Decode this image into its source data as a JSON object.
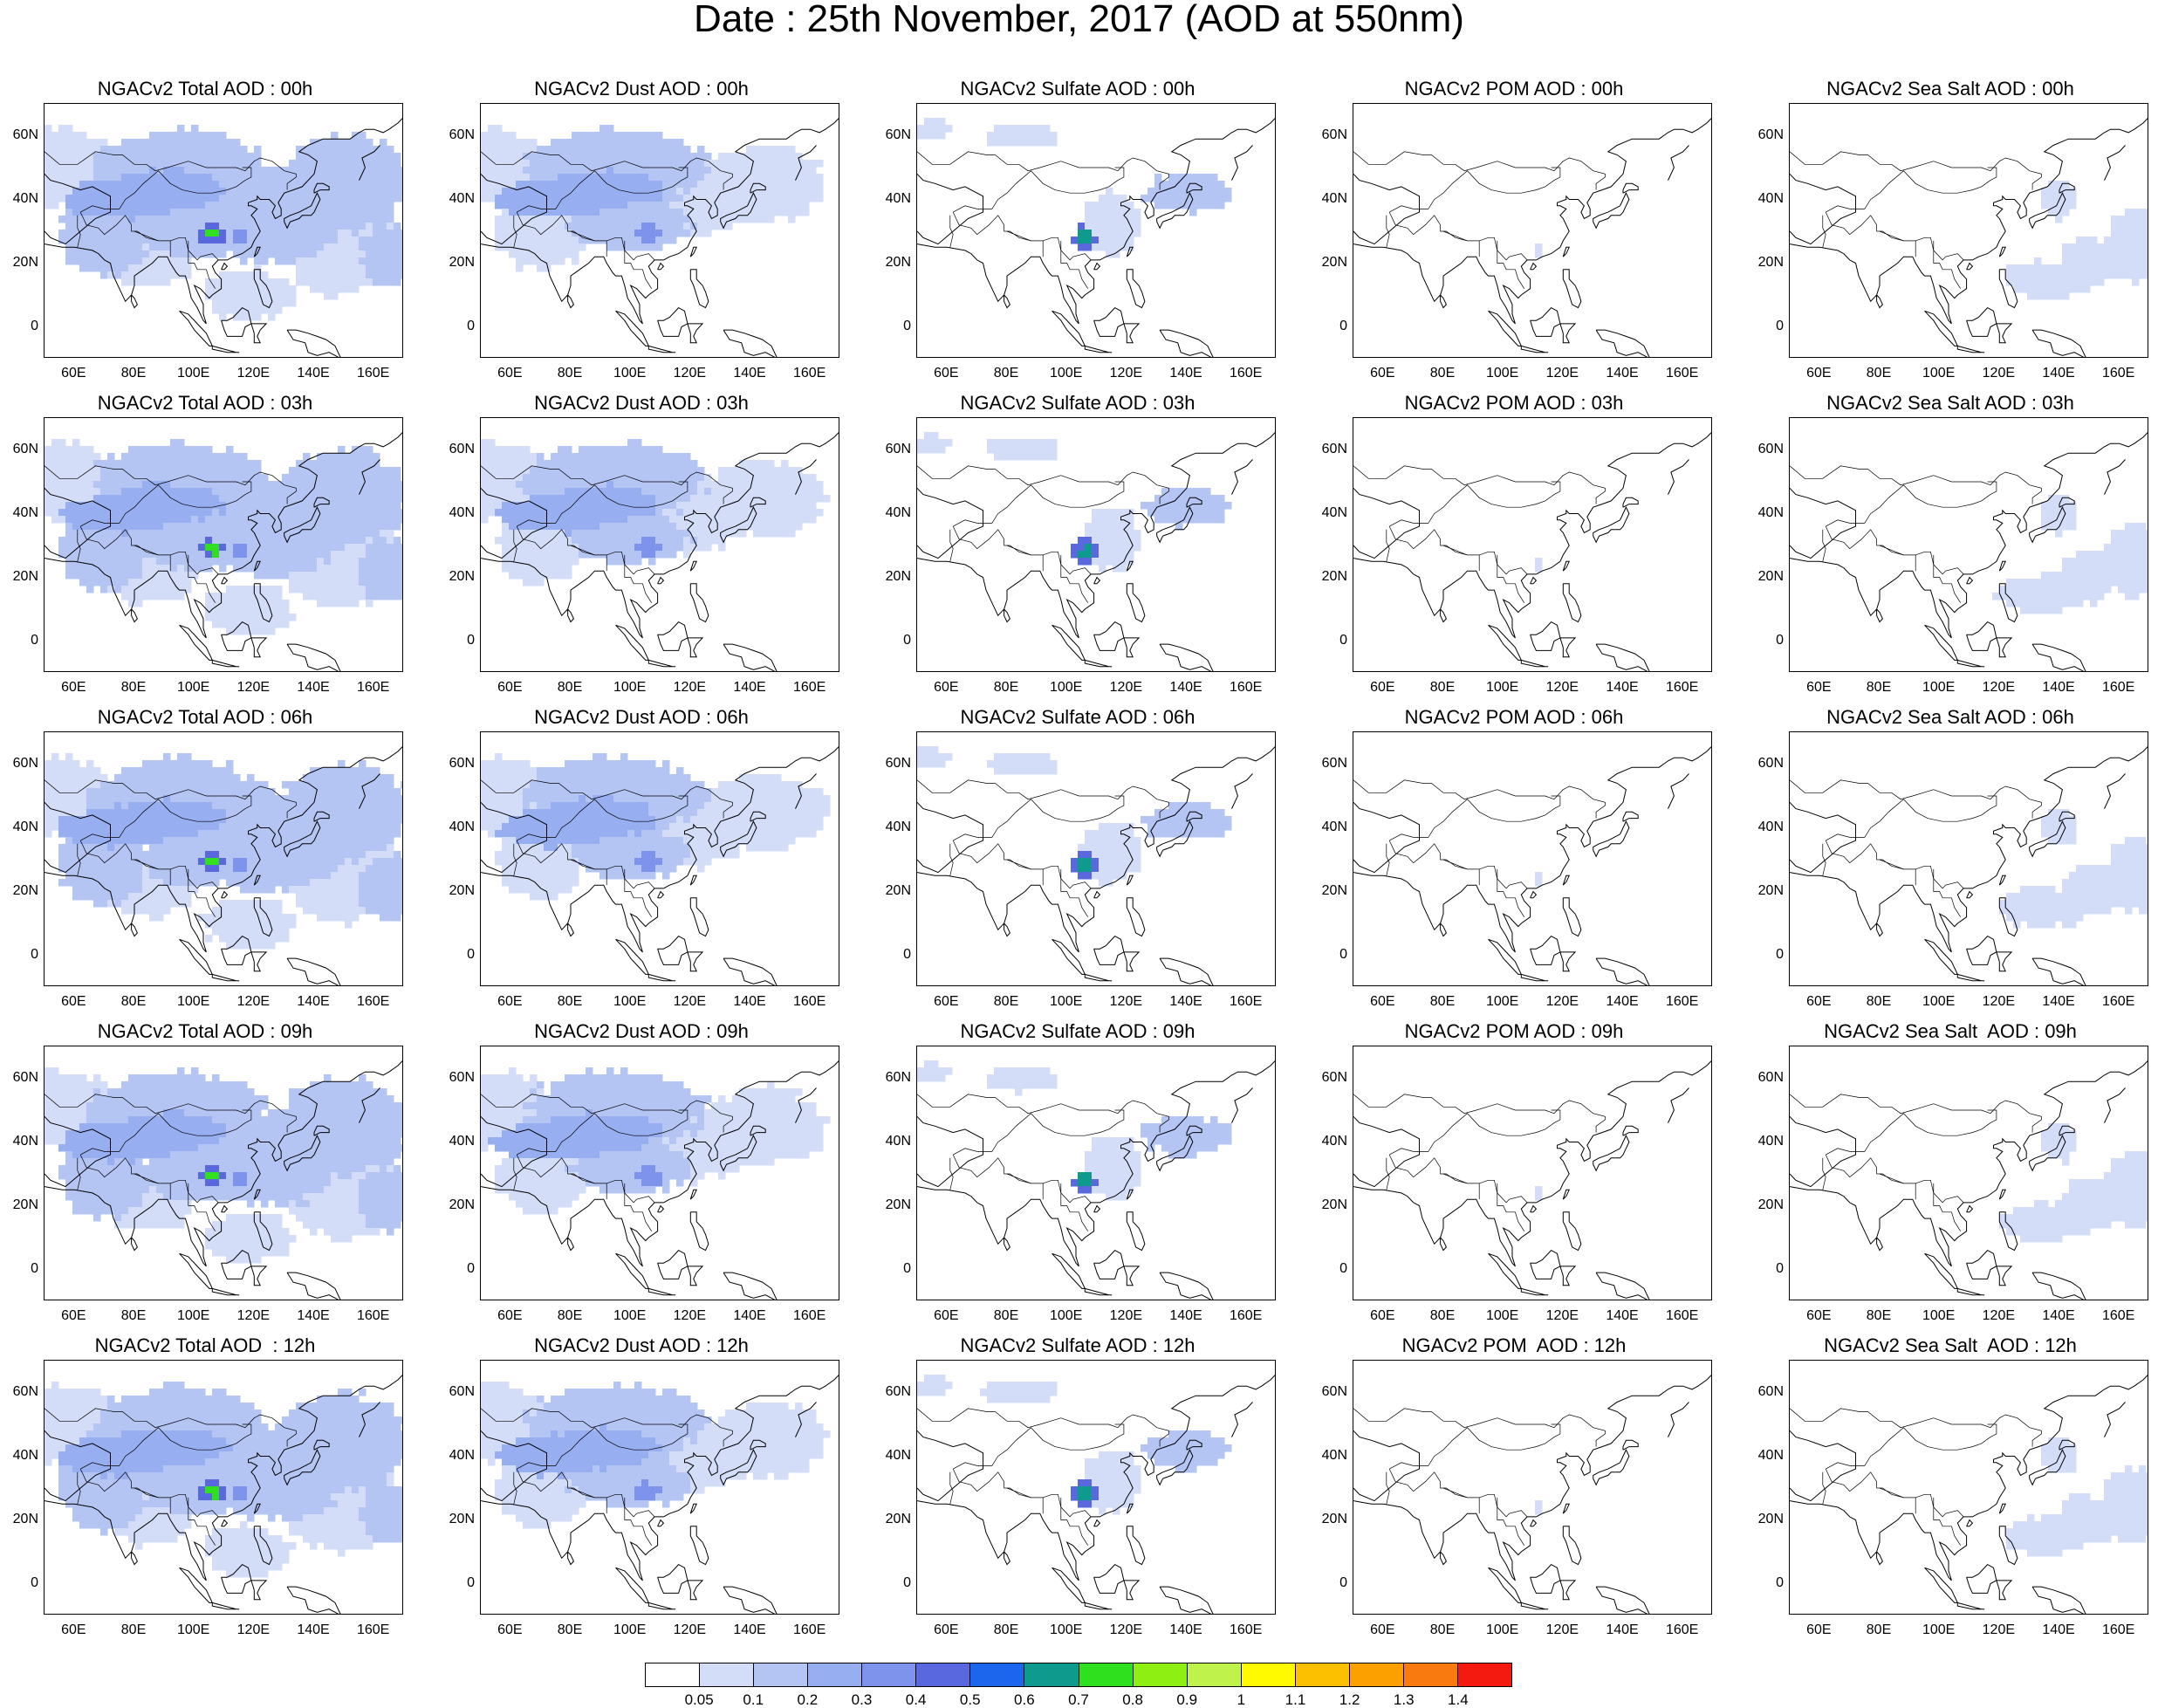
{
  "title": "Date : 25th November, 2017 (AOD at 550nm)",
  "map_axes": {
    "lon_ticks": [
      "60E",
      "80E",
      "100E",
      "120E",
      "140E",
      "160E"
    ],
    "lat_ticks": [
      "60N",
      "40N",
      "20N",
      "0"
    ],
    "lon_range": [
      50,
      170
    ],
    "lat_range": [
      -10,
      70
    ]
  },
  "panels": [
    {
      "title": "NGACv2 Total AOD : 00h",
      "species": "total"
    },
    {
      "title": "NGACv2 Dust AOD : 00h",
      "species": "dust"
    },
    {
      "title": "NGACv2 Sulfate AOD : 00h",
      "species": "sulfate"
    },
    {
      "title": "NGACv2 POM AOD : 00h",
      "species": "pom"
    },
    {
      "title": "NGACv2 Sea Salt AOD : 00h",
      "species": "seasalt"
    },
    {
      "title": "NGACv2 Total AOD : 03h",
      "species": "total"
    },
    {
      "title": "NGACv2 Dust AOD : 03h",
      "species": "dust"
    },
    {
      "title": "NGACv2 Sulfate AOD : 03h",
      "species": "sulfate"
    },
    {
      "title": "NGACv2 POM AOD : 03h",
      "species": "pom"
    },
    {
      "title": "NGACv2 Sea Salt AOD : 03h",
      "species": "seasalt"
    },
    {
      "title": "NGACv2 Total AOD : 06h",
      "species": "total"
    },
    {
      "title": "NGACv2 Dust AOD : 06h",
      "species": "dust"
    },
    {
      "title": "NGACv2 Sulfate AOD : 06h",
      "species": "sulfate"
    },
    {
      "title": "NGACv2 POM AOD : 06h",
      "species": "pom"
    },
    {
      "title": "NGACv2 Sea Salt AOD : 06h",
      "species": "seasalt"
    },
    {
      "title": "NGACv2 Total AOD : 09h",
      "species": "total"
    },
    {
      "title": "NGACv2 Dust AOD : 09h",
      "species": "dust"
    },
    {
      "title": "NGACv2 Sulfate AOD : 09h",
      "species": "sulfate"
    },
    {
      "title": "NGACv2 POM AOD : 09h",
      "species": "pom"
    },
    {
      "title": "NGACv2 Sea Salt  AOD : 09h",
      "species": "seasalt"
    },
    {
      "title": "NGACv2 Total AOD  : 12h",
      "species": "total"
    },
    {
      "title": "NGACv2 Dust AOD : 12h",
      "species": "dust"
    },
    {
      "title": "NGACv2 Sulfate AOD : 12h",
      "species": "sulfate"
    },
    {
      "title": "NGACv2 POM  AOD : 12h",
      "species": "pom"
    },
    {
      "title": "NGACv2 Sea Salt  AOD : 12h",
      "species": "seasalt"
    }
  ],
  "colorbar": {
    "labels": [
      "0.05",
      "0.1",
      "0.2",
      "0.3",
      "0.4",
      "0.5",
      "0.6",
      "0.7",
      "0.8",
      "0.9",
      "1",
      "1.1",
      "1.2",
      "1.3",
      "1.4"
    ],
    "colors": [
      "#ffffff",
      "#d4ddf7",
      "#b4c4f3",
      "#97aef0",
      "#7d93ec",
      "#5a68e0",
      "#1c66ee",
      "#0f9a8e",
      "#2fe01e",
      "#8ef012",
      "#bff24a",
      "#fffa00",
      "#fcc000",
      "#fca000",
      "#f97b10",
      "#f51a10"
    ]
  }
}
